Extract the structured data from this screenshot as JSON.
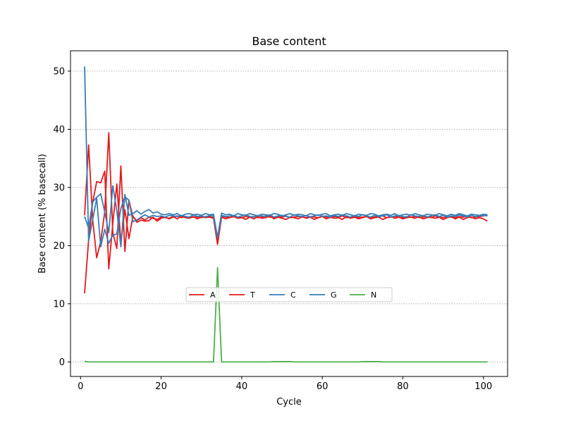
{
  "chart_data": {
    "type": "line",
    "title": "Base content",
    "xlabel": "Cycle",
    "ylabel": "Base content (% basecall)",
    "xlim": [
      -2.5,
      106
    ],
    "ylim": [
      -2.5,
      53.5
    ],
    "x_ticks": [
      0,
      20,
      40,
      60,
      80,
      100
    ],
    "y_ticks": [
      0,
      10,
      20,
      30,
      40,
      50
    ],
    "grid": "horizontal dotted",
    "legend_position": "center-bottom",
    "x": [
      1,
      2,
      3,
      4,
      5,
      6,
      7,
      8,
      9,
      10,
      11,
      12,
      13,
      14,
      15,
      16,
      17,
      18,
      19,
      20,
      21,
      22,
      23,
      24,
      25,
      26,
      27,
      28,
      29,
      30,
      31,
      32,
      33,
      34,
      35,
      36,
      37,
      38,
      39,
      40,
      41,
      42,
      43,
      44,
      45,
      46,
      47,
      48,
      49,
      50,
      51,
      52,
      53,
      54,
      55,
      56,
      57,
      58,
      59,
      60,
      61,
      62,
      63,
      64,
      65,
      66,
      67,
      68,
      69,
      70,
      71,
      72,
      73,
      74,
      75,
      76,
      77,
      78,
      79,
      80,
      81,
      82,
      83,
      84,
      85,
      86,
      87,
      88,
      89,
      90,
      91,
      92,
      93,
      94,
      95,
      96,
      97,
      98,
      99,
      100,
      101
    ],
    "series": [
      {
        "name": "A",
        "color": "#e41a1c",
        "values": [
          25.2,
          37.3,
          24.5,
          17.9,
          20.7,
          25.8,
          39.4,
          22.2,
          19.5,
          33.7,
          19.0,
          27.8,
          24.9,
          24.3,
          24.8,
          24.4,
          24.9,
          24.7,
          24.5,
          24.9,
          24.8,
          24.7,
          25.0,
          24.6,
          25.1,
          24.8,
          24.7,
          25.0,
          24.6,
          25.0,
          24.8,
          24.9,
          24.7,
          20.2,
          24.9,
          24.6,
          24.8,
          25.0,
          24.7,
          24.8,
          24.5,
          24.9,
          24.6,
          25.0,
          24.7,
          24.8,
          25.1,
          24.6,
          24.9,
          24.7,
          24.5,
          24.9,
          24.8,
          24.6,
          25.0,
          24.7,
          24.9,
          24.5,
          24.8,
          25.0,
          24.6,
          24.9,
          24.7,
          24.8,
          24.5,
          25.0,
          24.7,
          24.9,
          24.6,
          24.8,
          25.0,
          24.6,
          24.8,
          24.9,
          24.5,
          24.8,
          25.0,
          24.7,
          24.9,
          24.6,
          24.8,
          24.9,
          24.7,
          25.0,
          24.6,
          24.8,
          24.9,
          24.7,
          24.9,
          24.5,
          24.8,
          25.0,
          24.6,
          24.9,
          24.5,
          24.8,
          24.9,
          24.6,
          24.8,
          24.6,
          24.2
        ]
      },
      {
        "name": "T",
        "color": "#e41a1c",
        "values": [
          11.8,
          21.0,
          27.4,
          31.0,
          30.8,
          32.8,
          16.0,
          23.8,
          30.6,
          20.5,
          26.2,
          21.2,
          25.1,
          24.0,
          24.4,
          24.2,
          24.3,
          24.9,
          24.2,
          24.7,
          24.9,
          24.6,
          24.9,
          25.1,
          24.8,
          25.0,
          24.8,
          24.9,
          24.9,
          24.8,
          25.0,
          25.0,
          24.8,
          20.8,
          25.0,
          24.9,
          24.8,
          25.1,
          24.9,
          24.8,
          25.0,
          24.9,
          25.0,
          24.8,
          24.9,
          25.1,
          24.9,
          24.8,
          25.0,
          24.9,
          25.1,
          24.8,
          24.9,
          25.0,
          24.9,
          24.8,
          25.0,
          24.9,
          24.8,
          25.1,
          24.9,
          24.8,
          25.0,
          24.9,
          25.1,
          24.8,
          24.9,
          25.0,
          24.8,
          24.9,
          25.0,
          24.8,
          24.9,
          25.0,
          25.1,
          24.8,
          24.9,
          25.0,
          24.9,
          24.8,
          25.0,
          24.9,
          25.0,
          24.8,
          24.9,
          25.0,
          24.8,
          25.1,
          24.9,
          24.8,
          25.0,
          24.9,
          24.8,
          25.0,
          24.9,
          25.0,
          24.8,
          24.9,
          25.0,
          25.1,
          25.3
        ]
      },
      {
        "name": "C",
        "color": "#377eb8",
        "values": [
          50.8,
          20.8,
          24.4,
          28.1,
          19.8,
          22.8,
          20.4,
          21.8,
          22.0,
          26.4,
          28.4,
          27.8,
          24.1,
          24.4,
          24.9,
          25.3,
          24.9,
          25.2,
          25.0,
          25.1,
          24.9,
          25.2,
          25.1,
          25.0,
          25.2,
          25.0,
          24.9,
          25.3,
          25.0,
          25.1,
          24.9,
          25.2,
          25.1,
          21.3,
          25.2,
          25.0,
          25.1,
          25.2,
          24.9,
          25.1,
          25.3,
          25.0,
          24.9,
          25.2,
          25.1,
          25.0,
          25.3,
          24.9,
          25.1,
          25.2,
          25.0,
          24.9,
          25.3,
          25.1,
          25.0,
          25.2,
          24.9,
          25.1,
          25.3,
          25.0,
          25.1,
          24.9,
          25.2,
          25.0,
          25.3,
          25.1,
          24.9,
          25.2,
          25.0,
          25.3,
          25.1,
          24.9,
          25.2,
          25.0,
          25.1,
          25.3,
          24.9,
          25.1,
          25.2,
          25.0,
          24.9,
          25.3,
          25.1,
          25.0,
          25.2,
          24.9,
          25.1,
          25.3,
          25.0,
          25.2,
          24.9,
          25.1,
          25.0,
          25.3,
          25.1,
          24.9,
          25.2,
          25.0,
          25.1,
          25.2,
          25.1
        ]
      },
      {
        "name": "G",
        "color": "#377eb8",
        "values": [
          25.0,
          23.0,
          27.5,
          28.3,
          28.9,
          25.8,
          22.2,
          30.3,
          26.0,
          19.8,
          28.8,
          25.2,
          25.5,
          26.0,
          25.4,
          25.9,
          26.2,
          25.6,
          25.8,
          25.4,
          25.3,
          25.5,
          25.3,
          25.5,
          25.1,
          25.4,
          25.5,
          25.3,
          25.4,
          25.2,
          25.5,
          25.3,
          25.4,
          21.4,
          25.6,
          25.3,
          25.4,
          25.1,
          25.5,
          25.3,
          25.2,
          25.5,
          25.3,
          25.1,
          25.4,
          25.3,
          25.2,
          25.5,
          25.4,
          25.1,
          25.3,
          25.5,
          25.2,
          25.4,
          25.3,
          25.1,
          25.5,
          25.3,
          25.2,
          25.4,
          25.5,
          25.1,
          25.3,
          25.4,
          25.2,
          25.5,
          25.3,
          25.1,
          25.4,
          25.3,
          25.2,
          25.5,
          25.4,
          25.1,
          25.3,
          25.4,
          25.2,
          25.5,
          25.1,
          25.3,
          25.4,
          25.2,
          25.5,
          25.3,
          25.1,
          25.4,
          25.3,
          25.2,
          25.5,
          25.3,
          25.1,
          25.4,
          25.2,
          25.5,
          25.3,
          25.1,
          25.4,
          25.3,
          25.2,
          25.4,
          25.3
        ]
      },
      {
        "name": "N",
        "color": "#4daf4a",
        "values": [
          0.1,
          0.0,
          0.0,
          0.0,
          0.0,
          0.0,
          0.0,
          0.0,
          0.0,
          0.0,
          0.0,
          0.0,
          0.0,
          0.0,
          0.0,
          0.0,
          0.0,
          0.0,
          0.0,
          0.0,
          0.0,
          0.0,
          0.0,
          0.0,
          0.0,
          0.0,
          0.0,
          0.0,
          0.0,
          0.0,
          0.0,
          0.0,
          0.0,
          16.2,
          0.0,
          0.0,
          0.0,
          0.0,
          0.0,
          0.0,
          0.0,
          0.0,
          0.0,
          0.0,
          0.0,
          0.0,
          0.0,
          0.05,
          0.05,
          0.05,
          0.05,
          0.05,
          0.0,
          0.0,
          0.0,
          0.0,
          0.0,
          0.0,
          0.0,
          0.0,
          0.0,
          0.0,
          0.0,
          0.0,
          0.0,
          0.0,
          0.0,
          0.0,
          0.0,
          0.05,
          0.05,
          0.05,
          0.05,
          0.05,
          0.0,
          0.0,
          0.0,
          0.0,
          0.0,
          0.0,
          0.0,
          0.0,
          0.0,
          0.0,
          0.0,
          0.0,
          0.0,
          0.0,
          0.0,
          0.0,
          0.0,
          0.0,
          0.0,
          0.0,
          0.0,
          0.0,
          0.0,
          0.0,
          0.0,
          0.0,
          0.0
        ]
      }
    ]
  }
}
